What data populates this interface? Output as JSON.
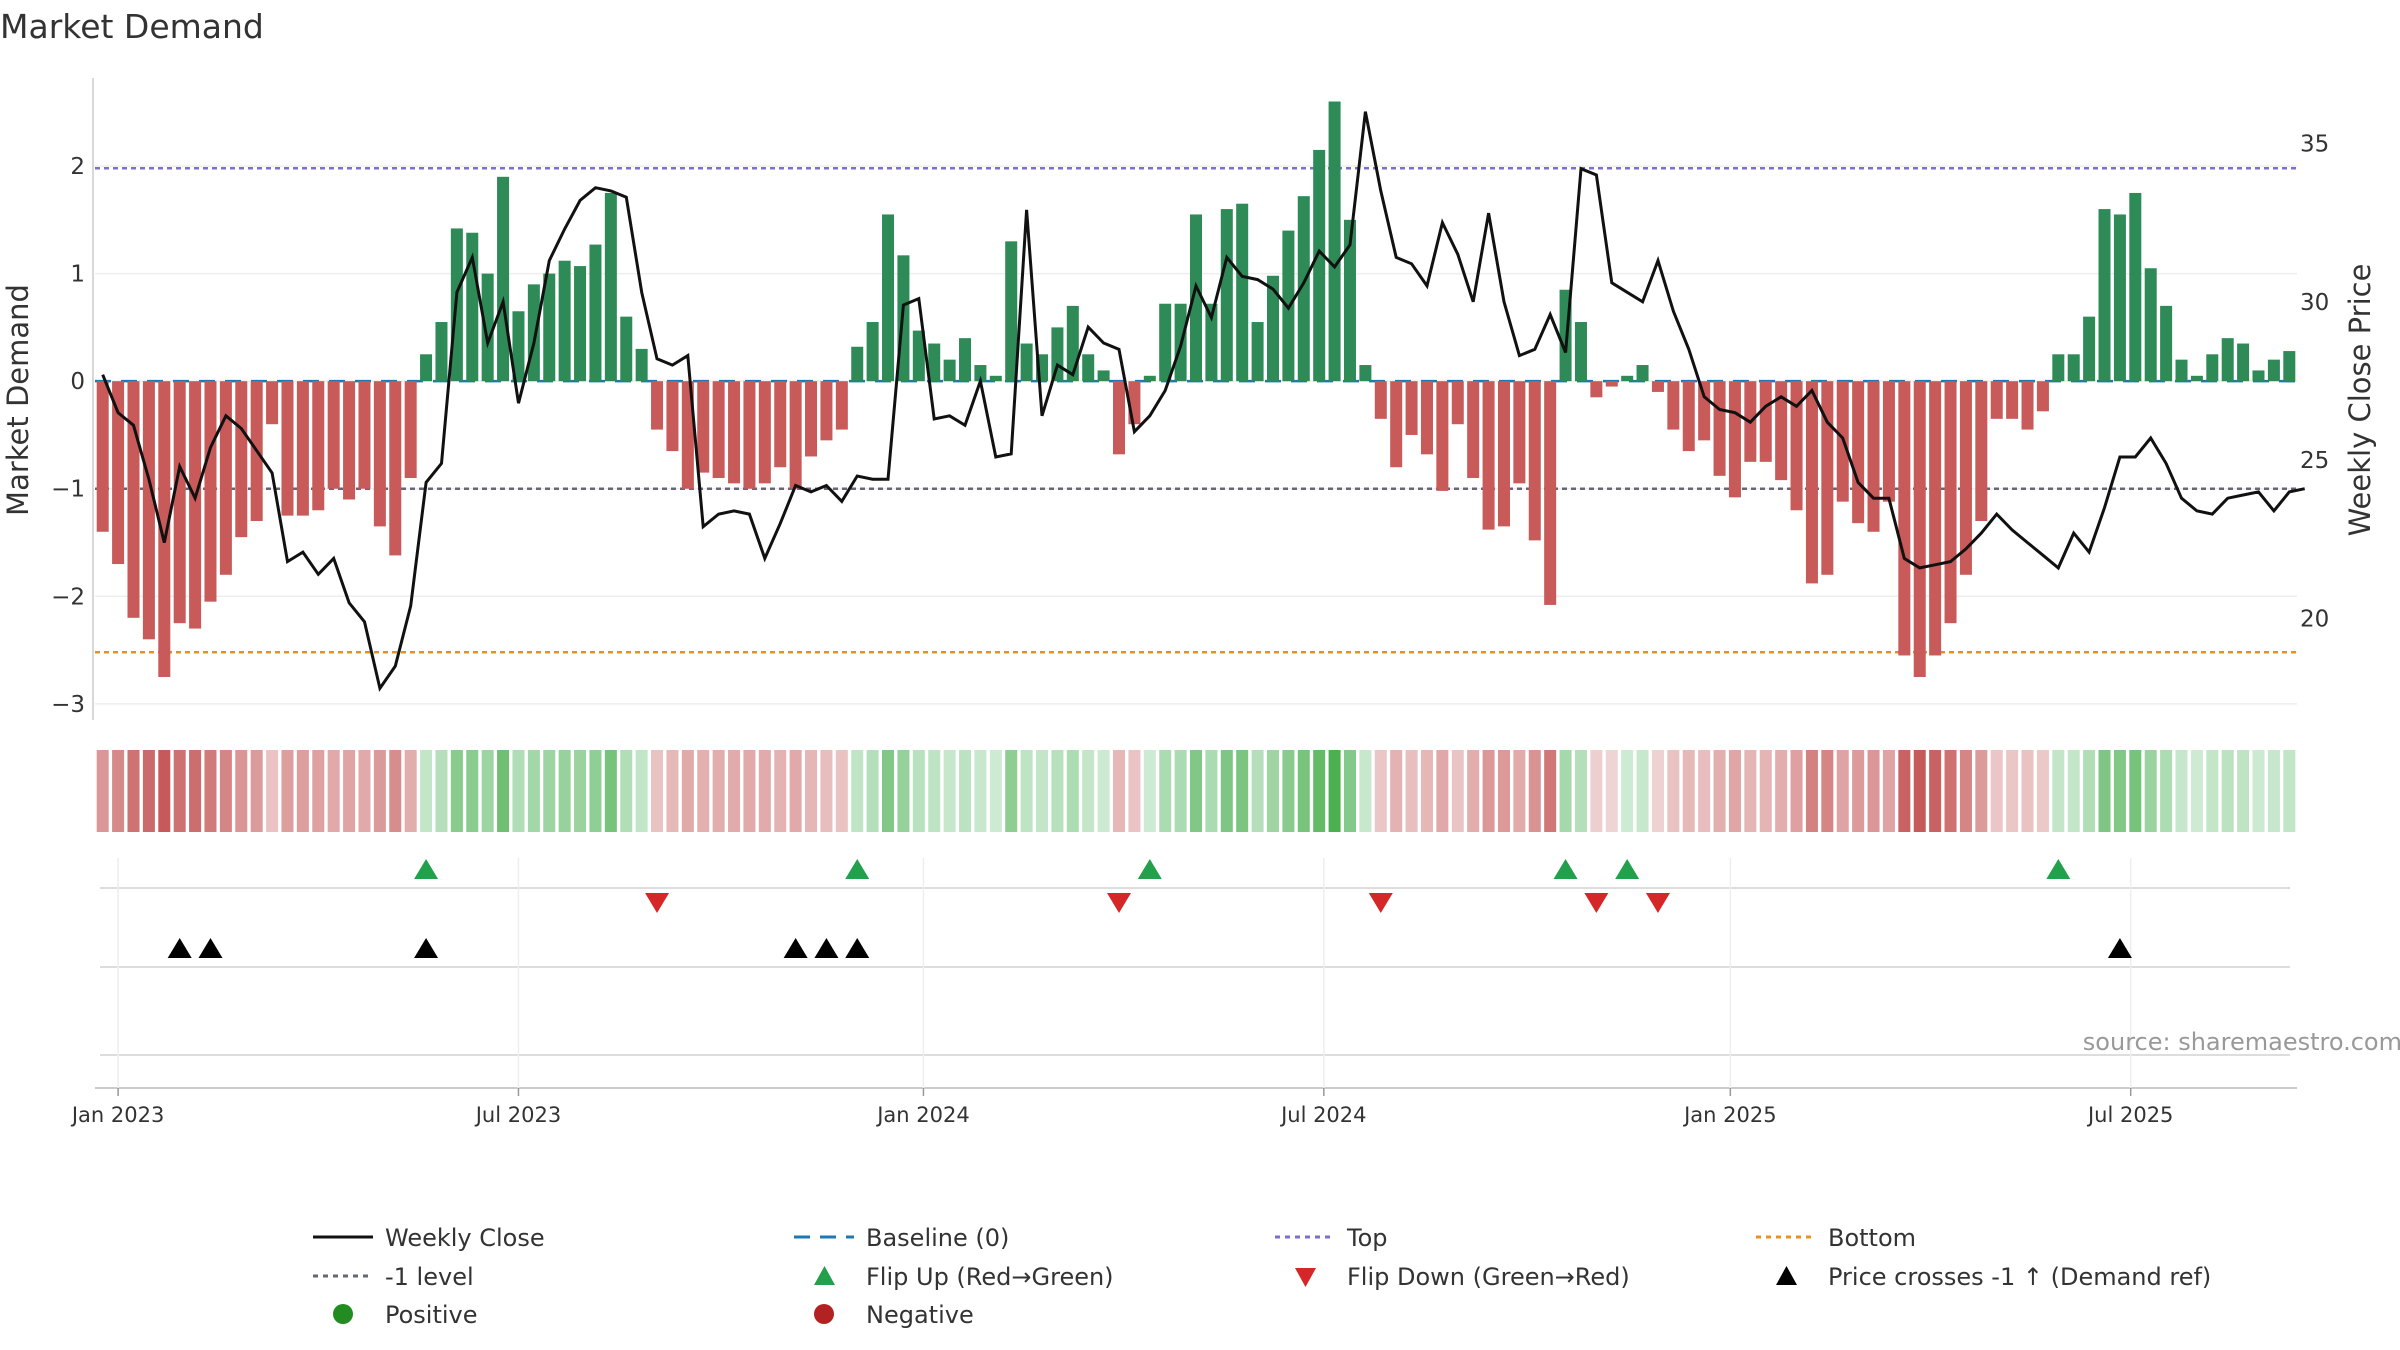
{
  "chart_data": {
    "type": "bar",
    "title": "Market Demand",
    "ylabel_left": "Market Demand",
    "ylabel_right": "Weekly Close Price",
    "ylim_left": [
      -3.15,
      2.8
    ],
    "yticks_left": [
      2,
      1,
      0,
      -1,
      -2,
      -3
    ],
    "yticks_left_labels": [
      "2",
      "1",
      "0",
      "−1",
      "−2",
      "−3"
    ],
    "ylim_right": [
      16.8,
      37.0
    ],
    "yticks_right": [
      35,
      30,
      25,
      20
    ],
    "xticks": [
      {
        "week": 1.5,
        "label": "Jan 2023"
      },
      {
        "week": 27.5,
        "label": "Jul 2023"
      },
      {
        "week": 53.8,
        "label": "Jan 2024"
      },
      {
        "week": 79.8,
        "label": "Jul 2024"
      },
      {
        "week": 106.2,
        "label": "Jan 2025"
      },
      {
        "week": 132.2,
        "label": "Jul 2025"
      }
    ],
    "reference_lines": {
      "top": 1.98,
      "minus_one_level": -1.0,
      "bottom": -2.52,
      "baseline": 0
    },
    "demand": [
      -1.4,
      -1.7,
      -2.2,
      -2.4,
      -2.75,
      -2.25,
      -2.3,
      -2.05,
      -1.8,
      -1.45,
      -1.3,
      -0.4,
      -1.25,
      -1.25,
      -1.2,
      -1.0,
      -1.1,
      -1.0,
      -1.35,
      -1.62,
      -0.9,
      0.25,
      0.55,
      1.42,
      1.38,
      1.0,
      1.9,
      0.65,
      0.9,
      1.0,
      1.12,
      1.07,
      1.27,
      1.75,
      0.6,
      0.3,
      -0.45,
      -0.65,
      -1.0,
      -0.85,
      -0.9,
      -0.95,
      -1.0,
      -0.95,
      -0.8,
      -1.0,
      -0.7,
      -0.55,
      -0.45,
      0.32,
      0.55,
      1.55,
      1.17,
      0.47,
      0.35,
      0.2,
      0.4,
      0.15,
      0.05,
      1.3,
      0.35,
      0.25,
      0.5,
      0.7,
      0.25,
      0.1,
      -0.68,
      -0.4,
      0.05,
      0.72,
      0.72,
      1.55,
      0.72,
      1.6,
      1.65,
      0.55,
      0.98,
      1.4,
      1.72,
      2.15,
      2.6,
      1.5,
      0.15,
      -0.35,
      -0.8,
      -0.5,
      -0.68,
      -1.02,
      -0.4,
      -0.9,
      -1.38,
      -1.35,
      -0.95,
      -1.48,
      -2.08,
      0.85,
      0.55,
      -0.15,
      -0.05,
      0.05,
      0.15,
      -0.1,
      -0.45,
      -0.65,
      -0.55,
      -0.88,
      -1.08,
      -0.75,
      -0.75,
      -0.92,
      -1.2,
      -1.88,
      -1.8,
      -1.12,
      -1.32,
      -1.4,
      -1.12,
      -2.55,
      -2.75,
      -2.55,
      -2.25,
      -1.8,
      -1.3,
      -0.35,
      -0.35,
      -0.45,
      -0.28,
      0.25,
      0.25,
      0.6,
      1.6,
      1.55,
      1.75,
      1.05,
      0.7,
      0.2,
      0.05,
      0.25,
      0.4,
      0.35,
      0.1,
      0.2,
      0.28
    ],
    "weekly_close": [
      27.7,
      26.5,
      26.1,
      24.4,
      22.4,
      24.8,
      23.8,
      25.4,
      26.4,
      26.0,
      25.3,
      24.6,
      21.8,
      22.1,
      21.4,
      21.9,
      20.5,
      19.9,
      17.8,
      18.5,
      20.4,
      24.3,
      24.9,
      30.3,
      31.4,
      28.7,
      30.0,
      26.8,
      28.7,
      31.3,
      32.3,
      33.2,
      33.6,
      33.5,
      33.3,
      30.3,
      28.2,
      28.0,
      28.3,
      22.9,
      23.3,
      23.4,
      23.3,
      21.9,
      23.0,
      24.2,
      24.0,
      24.2,
      23.7,
      24.5,
      24.4,
      24.4,
      29.9,
      30.1,
      26.3,
      26.4,
      26.1,
      27.5,
      25.1,
      25.2,
      32.9,
      26.4,
      28.0,
      27.7,
      29.2,
      28.7,
      28.5,
      25.9,
      26.4,
      27.2,
      28.6,
      30.5,
      29.5,
      31.4,
      30.8,
      30.7,
      30.4,
      29.8,
      30.6,
      31.6,
      31.1,
      31.8,
      36.0,
      33.5,
      31.4,
      31.2,
      30.5,
      32.5,
      31.5,
      30.0,
      32.8,
      30.0,
      28.3,
      28.5,
      29.6,
      28.4,
      34.2,
      34.0,
      30.6,
      30.3,
      30.0,
      31.3,
      29.7,
      28.5,
      27.0,
      26.6,
      26.5,
      26.2,
      26.7,
      27.0,
      26.7,
      27.2,
      26.2,
      25.7,
      24.3,
      23.8,
      23.8,
      21.9,
      21.6,
      21.7,
      21.8,
      22.2,
      22.7,
      23.3,
      22.8,
      22.4,
      22.0,
      21.6,
      22.7,
      22.1,
      23.5,
      25.1,
      25.1,
      25.7,
      24.9,
      23.8,
      23.4,
      23.3,
      23.8,
      23.9,
      24.0,
      23.4,
      24.0,
      24.1
    ]
  },
  "legend": {
    "weekly_close": "Weekly Close",
    "baseline": "Baseline (0)",
    "top": "Top",
    "bottom": "Bottom",
    "minus_one": "-1 level",
    "flip_up": "Flip Up (Red→Green)",
    "flip_down": "Flip Down (Green→Red)",
    "price_cross": "Price crosses -1 ↑ (Demand ref)",
    "positive": "Positive",
    "negative": "Negative"
  },
  "colors": {
    "positive": "#2e8b57",
    "negative": "#c85a5a",
    "close_line": "#111111",
    "top_line": "#7b6fd1",
    "bottom_line": "#e8921e",
    "baseline": "#1f77b4",
    "minus_one_line": "#666677",
    "flip_up": "#22a04b",
    "flip_down": "#d62728",
    "price_cross": "#000000",
    "legend_positive": "#228b22",
    "legend_negative": "#b22222"
  },
  "source": "source: sharemaestro.com"
}
